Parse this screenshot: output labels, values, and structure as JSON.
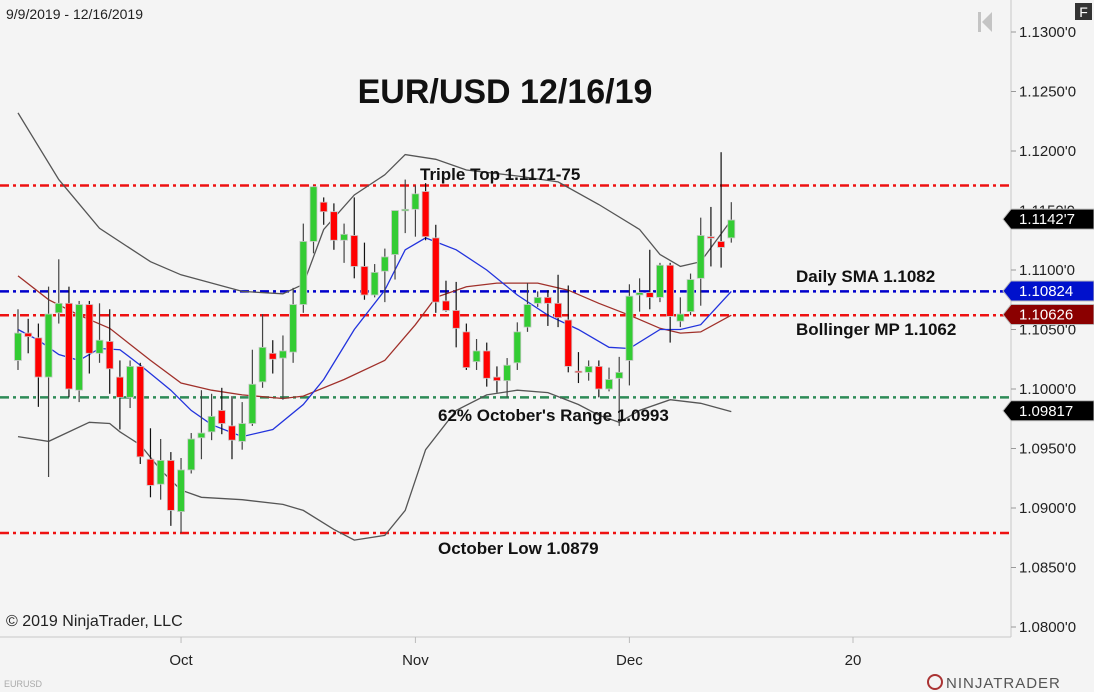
{
  "header": {
    "date_range": "9/9/2019 - 12/16/2019",
    "f_button": "F"
  },
  "footer": {
    "copyright": "© 2019 NinjaTrader, LLC",
    "instrument": "EURUSD",
    "logo_text": "NINJATRADER"
  },
  "colors": {
    "up": "#33cc33",
    "down": "#ff0000",
    "sma": "#2233dd",
    "bb_mid": "#a0302a",
    "bb_band": "#555555",
    "bg": "#f4f4f4"
  },
  "chart_data": {
    "type": "candlestick",
    "title": "EUR/USD 12/16/19",
    "ylim": [
      1.078,
      1.1325
    ],
    "y_ticks": [
      "1.1300'0",
      "1.1250'0",
      "1.1200'0",
      "1.1150'0",
      "1.1100'0",
      "1.1050'0",
      "1.1000'0",
      "1.0950'0",
      "1.0900'0",
      "1.0850'0",
      "1.0800'0"
    ],
    "y_tick_values": [
      1.13,
      1.125,
      1.12,
      1.115,
      1.11,
      1.105,
      1.1,
      1.095,
      1.09,
      1.085,
      1.08
    ],
    "x_ticks": [
      {
        "label": "Oct",
        "bar": 16
      },
      {
        "label": "Nov",
        "bar": 39
      },
      {
        "label": "Dec",
        "bar": 60
      },
      {
        "label": "20",
        "bar": 82
      }
    ],
    "ohlc": [
      [
        1.1024,
        1.1067,
        1.1016,
        1.1047
      ],
      [
        1.1047,
        1.1059,
        1.103,
        1.1044
      ],
      [
        1.1043,
        1.1055,
        1.0985,
        1.101
      ],
      [
        1.101,
        1.1086,
        1.0926,
        1.1063
      ],
      [
        1.1064,
        1.1109,
        1.1055,
        1.1072
      ],
      [
        1.1072,
        1.1086,
        1.0993,
        1.1
      ],
      [
        1.0999,
        1.1074,
        1.0989,
        1.1071
      ],
      [
        1.1071,
        1.1074,
        1.1013,
        1.103
      ],
      [
        1.103,
        1.1072,
        1.1022,
        1.1041
      ],
      [
        1.104,
        1.1067,
        1.0996,
        1.1017
      ],
      [
        1.101,
        1.1024,
        1.0966,
        1.0993
      ],
      [
        1.0993,
        1.1024,
        1.0984,
        1.1019
      ],
      [
        1.1019,
        1.1022,
        1.0937,
        1.0943
      ],
      [
        1.0941,
        1.0967,
        1.0909,
        1.0919
      ],
      [
        1.092,
        1.0958,
        1.0907,
        1.094
      ],
      [
        1.094,
        1.0947,
        1.0885,
        1.0898
      ],
      [
        1.0897,
        1.0942,
        1.0879,
        1.0932
      ],
      [
        1.0932,
        1.0963,
        1.0929,
        1.0958
      ],
      [
        1.0959,
        1.0999,
        1.0941,
        1.0963
      ],
      [
        1.0964,
        1.0996,
        1.0957,
        1.0977
      ],
      [
        1.0982,
        1.1001,
        1.0962,
        1.0971
      ],
      [
        1.0969,
        1.0994,
        1.0941,
        1.0957
      ],
      [
        1.0956,
        1.0989,
        1.0949,
        1.0971
      ],
      [
        1.0971,
        1.1033,
        1.0969,
        1.1004
      ],
      [
        1.1006,
        1.1063,
        1.1001,
        1.1035
      ],
      [
        1.103,
        1.1041,
        1.1013,
        1.1025
      ],
      [
        1.1026,
        1.1045,
        1.0991,
        1.1032
      ],
      [
        1.1031,
        1.1085,
        1.1022,
        1.1071
      ],
      [
        1.1071,
        1.1139,
        1.1064,
        1.1124
      ],
      [
        1.1124,
        1.1171,
        1.1114,
        1.117
      ],
      [
        1.1157,
        1.1161,
        1.1138,
        1.1149
      ],
      [
        1.1149,
        1.1156,
        1.1117,
        1.1125
      ],
      [
        1.1125,
        1.1139,
        1.1106,
        1.113
      ],
      [
        1.1129,
        1.1161,
        1.1093,
        1.1103
      ],
      [
        1.1103,
        1.1123,
        1.1075,
        1.1079
      ],
      [
        1.1079,
        1.1105,
        1.1077,
        1.1098
      ],
      [
        1.1099,
        1.1118,
        1.1073,
        1.1111
      ],
      [
        1.1113,
        1.115,
        1.1092,
        1.115
      ],
      [
        1.115,
        1.1176,
        1.1131,
        1.1151
      ],
      [
        1.1151,
        1.1171,
        1.1128,
        1.1164
      ],
      [
        1.1166,
        1.1173,
        1.1125,
        1.1128
      ],
      [
        1.1127,
        1.1138,
        1.1064,
        1.1073
      ],
      [
        1.1074,
        1.1091,
        1.1065,
        1.1066
      ],
      [
        1.1066,
        1.109,
        1.1035,
        1.1051
      ],
      [
        1.1048,
        1.1055,
        1.1016,
        1.1018
      ],
      [
        1.1023,
        1.1042,
        1.1016,
        1.1032
      ],
      [
        1.1032,
        1.1039,
        1.1002,
        1.1009
      ],
      [
        1.101,
        1.1019,
        1.0997,
        1.1007
      ],
      [
        1.1007,
        1.1026,
        1.0993,
        1.102
      ],
      [
        1.1022,
        1.1056,
        1.1016,
        1.1048
      ],
      [
        1.1052,
        1.1089,
        1.1048,
        1.1071
      ],
      [
        1.1072,
        1.1082,
        1.1069,
        1.1077
      ],
      [
        1.1077,
        1.1083,
        1.1053,
        1.1072
      ],
      [
        1.1072,
        1.1096,
        1.1052,
        1.106
      ],
      [
        1.1058,
        1.1087,
        1.1014,
        1.1019
      ],
      [
        1.1015,
        1.1031,
        1.1005,
        1.1014
      ],
      [
        1.1014,
        1.1024,
        1.1007,
        1.1019
      ],
      [
        1.1019,
        1.1024,
        1.0993,
        1.1
      ],
      [
        1.1,
        1.1018,
        1.0998,
        1.1008
      ],
      [
        1.1009,
        1.1027,
        1.0969,
        1.1014
      ],
      [
        1.1024,
        1.1088,
        1.1003,
        1.1078
      ],
      [
        1.1079,
        1.1093,
        1.1065,
        1.1081
      ],
      [
        1.1081,
        1.1117,
        1.1067,
        1.1077
      ],
      [
        1.1077,
        1.1106,
        1.1073,
        1.1104
      ],
      [
        1.1104,
        1.1106,
        1.1039,
        1.1061
      ],
      [
        1.1057,
        1.1077,
        1.1052,
        1.1063
      ],
      [
        1.1065,
        1.1097,
        1.1062,
        1.1092
      ],
      [
        1.1093,
        1.1144,
        1.107,
        1.1129
      ],
      [
        1.1128,
        1.1153,
        1.1103,
        1.1127
      ],
      [
        1.1124,
        1.1199,
        1.1102,
        1.1119
      ],
      [
        1.1127,
        1.1157,
        1.1123,
        1.1142
      ]
    ],
    "indicators": {
      "bb_upper": [
        [
          0,
          1.1232
        ],
        [
          4,
          1.1176
        ],
        [
          8,
          1.1135
        ],
        [
          13,
          1.1107
        ],
        [
          16,
          1.1096
        ],
        [
          22,
          1.1082
        ],
        [
          26,
          1.108
        ],
        [
          28,
          1.1088
        ],
        [
          30,
          1.1134
        ],
        [
          33,
          1.1163
        ],
        [
          36,
          1.118
        ],
        [
          38,
          1.1197
        ],
        [
          41,
          1.1193
        ],
        [
          44,
          1.1184
        ],
        [
          49,
          1.1179
        ],
        [
          53,
          1.1174
        ],
        [
          57,
          1.1155
        ],
        [
          61,
          1.1134
        ],
        [
          63,
          1.1113
        ],
        [
          65,
          1.1103
        ],
        [
          67,
          1.1107
        ],
        [
          70,
          1.1142
        ]
      ],
      "bb_lower": [
        [
          0,
          1.096
        ],
        [
          3,
          1.0956
        ],
        [
          7,
          1.0972
        ],
        [
          9,
          1.0971
        ],
        [
          10,
          1.0964
        ],
        [
          12,
          1.0953
        ],
        [
          14,
          1.0932
        ],
        [
          16,
          1.0915
        ],
        [
          18,
          1.0909
        ],
        [
          22,
          1.0907
        ],
        [
          26,
          1.0903
        ],
        [
          28,
          1.0898
        ],
        [
          31,
          1.0882
        ],
        [
          33,
          1.0873
        ],
        [
          36,
          1.0877
        ],
        [
          38,
          1.0898
        ],
        [
          40,
          1.0949
        ],
        [
          43,
          1.0982
        ],
        [
          46,
          1.0995
        ],
        [
          49,
          1.0999
        ],
        [
          52,
          1.0997
        ],
        [
          55,
          1.0987
        ],
        [
          57,
          1.0978
        ],
        [
          59,
          1.0972
        ],
        [
          61,
          1.0982
        ],
        [
          64,
          1.0991
        ],
        [
          67,
          1.0988
        ],
        [
          70,
          1.0981
        ]
      ],
      "bb_middle": [
        [
          0,
          1.1095
        ],
        [
          3,
          1.1075
        ],
        [
          6,
          1.1062
        ],
        [
          9,
          1.1051
        ],
        [
          13,
          1.1024
        ],
        [
          16,
          1.1005
        ],
        [
          19,
          1.0999
        ],
        [
          22,
          1.0995
        ],
        [
          26,
          1.0992
        ],
        [
          28,
          1.0994
        ],
        [
          32,
          1.1008
        ],
        [
          36,
          1.1024
        ],
        [
          39,
          1.1054
        ],
        [
          41,
          1.1077
        ],
        [
          44,
          1.1086
        ],
        [
          47,
          1.1089
        ],
        [
          51,
          1.1089
        ],
        [
          54,
          1.1083
        ],
        [
          57,
          1.1072
        ],
        [
          60,
          1.1062
        ],
        [
          63,
          1.1051
        ],
        [
          65,
          1.1047
        ],
        [
          67,
          1.1048
        ],
        [
          70,
          1.1062
        ]
      ],
      "sma": [
        [
          0,
          1.105
        ],
        [
          2,
          1.1041
        ],
        [
          4,
          1.1029
        ],
        [
          6,
          1.1024
        ],
        [
          8,
          1.1034
        ],
        [
          10,
          1.1033
        ],
        [
          12,
          1.102
        ],
        [
          15,
          1.0999
        ],
        [
          17,
          1.0982
        ],
        [
          19,
          1.097
        ],
        [
          22,
          1.096
        ],
        [
          25,
          1.0966
        ],
        [
          28,
          1.0987
        ],
        [
          30,
          1.1008
        ],
        [
          33,
          1.105
        ],
        [
          36,
          1.1083
        ],
        [
          38,
          1.1117
        ],
        [
          40,
          1.1127
        ],
        [
          43,
          1.1117
        ],
        [
          46,
          1.11
        ],
        [
          49,
          1.1079
        ],
        [
          52,
          1.1062
        ],
        [
          55,
          1.105
        ],
        [
          58,
          1.1035
        ],
        [
          60,
          1.1034
        ],
        [
          63,
          1.105
        ],
        [
          65,
          1.105
        ],
        [
          67,
          1.1054
        ],
        [
          70,
          1.1082
        ]
      ]
    },
    "levels": [
      {
        "price": 1.1171,
        "color": "#ee1111",
        "label": "Triple Top 1.1171-75"
      },
      {
        "price": 1.1082,
        "color": "#0000cc",
        "label": "Daily SMA 1.1082"
      },
      {
        "price": 1.1062,
        "color": "#ee1111",
        "label": "Bollinger MP 1.1062"
      },
      {
        "price": 1.0993,
        "color": "#2e8b57",
        "label": "62% October's Range 1.0993"
      },
      {
        "price": 1.0879,
        "color": "#ee1111",
        "label": "October Low 1.0879"
      }
    ],
    "price_tags": [
      {
        "price": 1.11427,
        "text": "1.1142'7",
        "color": "#000000"
      },
      {
        "price": 1.10824,
        "text": "1.10824",
        "color": "#0011cc"
      },
      {
        "price": 1.10626,
        "text": "1.10626",
        "color": "#8b0000"
      },
      {
        "price": 1.09817,
        "text": "1.09817",
        "color": "#000000"
      }
    ]
  }
}
